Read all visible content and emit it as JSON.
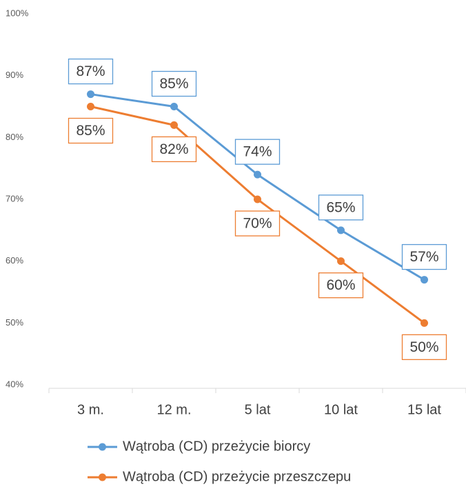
{
  "chart_data": {
    "type": "line",
    "categories": [
      "3 m.",
      "12 m.",
      "5 lat",
      "10 lat",
      "15 lat"
    ],
    "series": [
      {
        "name": "Wątroba (CD) przeżycie biorcy",
        "color": "#5b9bd5",
        "values": [
          87,
          85,
          74,
          65,
          57
        ],
        "value_labels": [
          "87%",
          "85%",
          "74%",
          "65%",
          "57%"
        ]
      },
      {
        "name": "Wątroba (CD) przeżycie przeszczepu",
        "color": "#ed7d31",
        "values": [
          85,
          82,
          70,
          60,
          50
        ],
        "value_labels": [
          "85%",
          "82%",
          "70%",
          "60%",
          "50%"
        ]
      }
    ],
    "ylim": [
      40,
      100
    ],
    "yticks": [
      {
        "value": 40,
        "label": "40%"
      },
      {
        "value": 50,
        "label": "50%"
      },
      {
        "value": 60,
        "label": "60%"
      },
      {
        "value": 70,
        "label": "70%"
      },
      {
        "value": 80,
        "label": "80%"
      },
      {
        "value": 90,
        "label": "90%"
      },
      {
        "value": 100,
        "label": "100%"
      }
    ],
    "grid": false,
    "legend": "bottom"
  }
}
